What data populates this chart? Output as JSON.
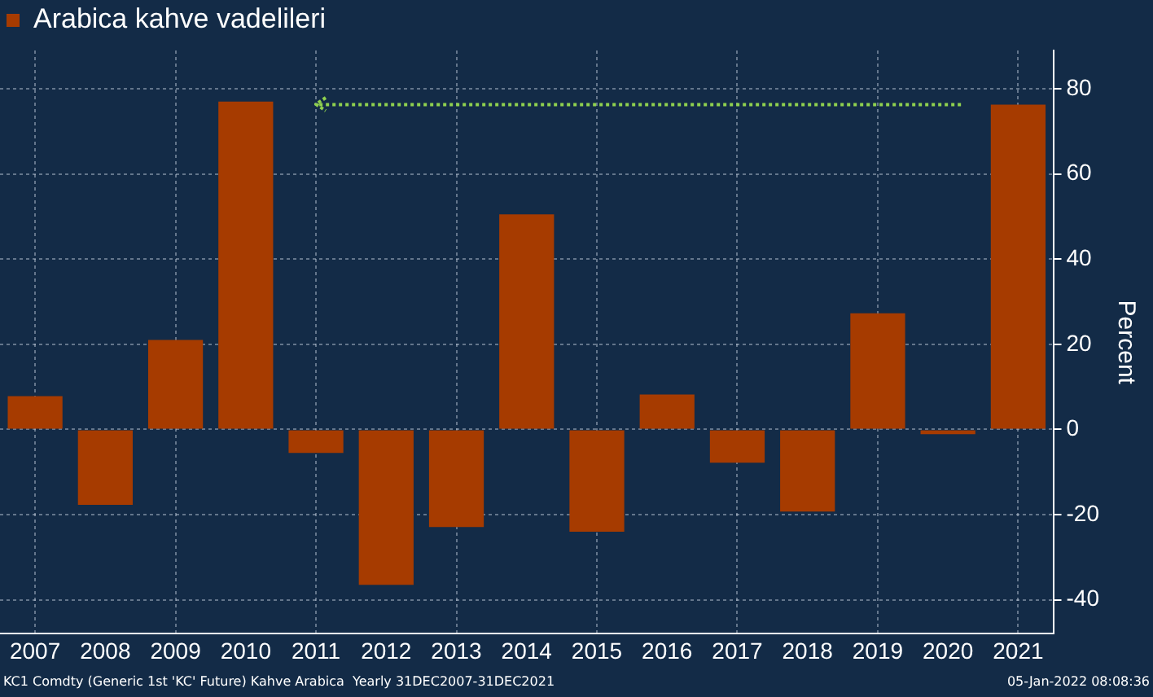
{
  "chart_data": {
    "type": "bar",
    "categories": [
      "2007",
      "2008",
      "2009",
      "2010",
      "2011",
      "2012",
      "2013",
      "2014",
      "2015",
      "2016",
      "2017",
      "2018",
      "2019",
      "2020",
      "2021"
    ],
    "series": [
      {
        "name": "Arabica kahve vadelileri",
        "color": "#a63b00",
        "values": [
          7.8,
          -17.7,
          21,
          77,
          -5.5,
          -36.5,
          -22.9,
          50.5,
          -24,
          8.2,
          -7.8,
          -19.3,
          27.3,
          -1.1,
          76.3
        ]
      }
    ],
    "ref_lines": [
      {
        "axis": "y",
        "value": 76.3,
        "color": "#8fd14f",
        "line_style": "dotted"
      }
    ],
    "ylabel": "Percent",
    "ylim": [
      -48,
      89
    ],
    "yticks": [
      -40,
      -20,
      0,
      20,
      40,
      60,
      80
    ],
    "grid": true,
    "legend": "top left",
    "annotations": [
      "KC1 Comdty (Generic 1st 'KC' Future) Kahve Arabica  Yearly 31DEC2007-31DEC2021",
      "05-Jan-2022 08:08:36"
    ]
  }
}
